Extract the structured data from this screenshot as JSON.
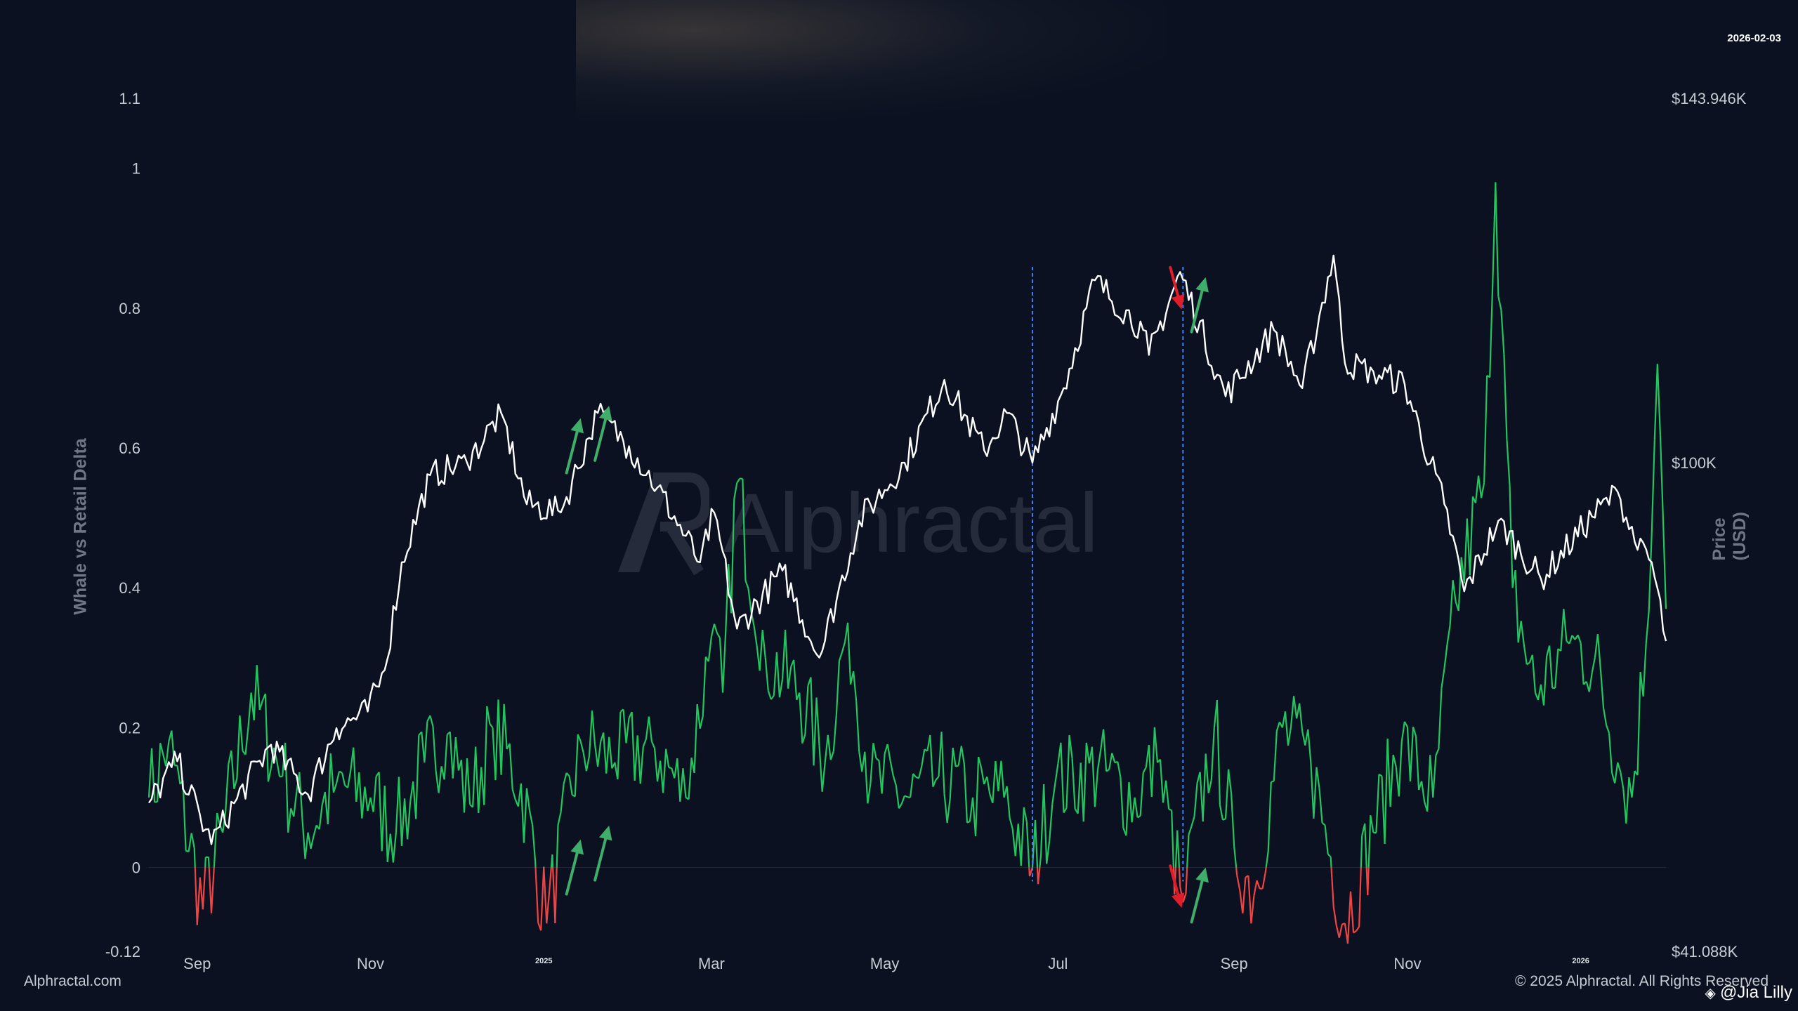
{
  "header": {
    "date": "2026-02-03"
  },
  "footer": {
    "source": "Alphractal.com",
    "copyright": "© 2025 Alphractal. All Rights Reserved",
    "handle": "@Jia Lilly"
  },
  "watermark": {
    "text": "Alphractal"
  },
  "colors": {
    "background": "#0b1120",
    "price_line": "#ffffff",
    "delta_positive": "#22c55e",
    "delta_negative": "#ef4444",
    "marker_line": "#3b82f6",
    "arrow_up": "#3fae6a",
    "arrow_down": "#e11d2a",
    "axis_text": "#c7cbd3",
    "axis_title": "#6e7688"
  },
  "chart_data": {
    "type": "line",
    "title": "",
    "ylabel_left": "Whale vs Retail Delta",
    "ylabel_right": "Price (USD)",
    "ylim_left": [
      -0.12,
      1.1
    ],
    "ylim_right": [
      41088,
      143946
    ],
    "y_ticks_left": [
      "1.1",
      "1",
      "0.8",
      "0.6",
      "0.4",
      "0.2",
      "0",
      "-0.12"
    ],
    "y_ticks_right": [
      "$143.946K",
      "$100K",
      "$41.088K"
    ],
    "x_range": [
      "2024-08-15",
      "2026-01-31"
    ],
    "x_ticks": [
      {
        "date": "2024-09-01",
        "label": "Sep",
        "small": false
      },
      {
        "date": "2024-11-01",
        "label": "Nov",
        "small": false
      },
      {
        "date": "2025-01-01",
        "label": "2025",
        "small": true
      },
      {
        "date": "2025-03-01",
        "label": "Mar",
        "small": false
      },
      {
        "date": "2025-05-01",
        "label": "May",
        "small": false
      },
      {
        "date": "2025-07-01",
        "label": "Jul",
        "small": false
      },
      {
        "date": "2025-09-01",
        "label": "Sep",
        "small": false
      },
      {
        "date": "2025-11-01",
        "label": "Nov",
        "small": false
      },
      {
        "date": "2026-01-01",
        "label": "2026",
        "small": true
      }
    ],
    "grid": false,
    "legend": "none",
    "series": [
      {
        "axis": "right",
        "points": [
          [
            "2024-08-15",
            59000
          ],
          [
            "2024-08-25",
            64000
          ],
          [
            "2024-09-06",
            54000
          ],
          [
            "2024-09-15",
            59500
          ],
          [
            "2024-09-27",
            66000
          ],
          [
            "2024-10-10",
            60000
          ],
          [
            "2024-10-20",
            68000
          ],
          [
            "2024-10-31",
            70000
          ],
          [
            "2024-11-06",
            75000
          ],
          [
            "2024-11-12",
            88000
          ],
          [
            "2024-11-22",
            98500
          ],
          [
            "2024-12-05",
            100000
          ],
          [
            "2024-12-17",
            106000
          ],
          [
            "2024-12-26",
            95000
          ],
          [
            "2025-01-07",
            94000
          ],
          [
            "2025-01-20",
            106000
          ],
          [
            "2025-01-31",
            102000
          ],
          [
            "2025-02-10",
            97000
          ],
          [
            "2025-02-25",
            88000
          ],
          [
            "2025-03-02",
            94000
          ],
          [
            "2025-03-10",
            80000
          ],
          [
            "2025-03-26",
            87000
          ],
          [
            "2025-04-08",
            76500
          ],
          [
            "2025-04-22",
            93000
          ],
          [
            "2025-05-08",
            100000
          ],
          [
            "2025-05-22",
            110000
          ],
          [
            "2025-06-05",
            101500
          ],
          [
            "2025-06-13",
            106000
          ],
          [
            "2025-06-22",
            100000
          ],
          [
            "2025-07-03",
            109000
          ],
          [
            "2025-07-14",
            122000
          ],
          [
            "2025-07-31",
            116000
          ],
          [
            "2025-08-02",
            113000
          ],
          [
            "2025-08-13",
            123000
          ],
          [
            "2025-08-29",
            108000
          ],
          [
            "2025-09-15",
            116000
          ],
          [
            "2025-09-25",
            109000
          ],
          [
            "2025-10-06",
            125000
          ],
          [
            "2025-10-10",
            112000
          ],
          [
            "2025-10-20",
            111000
          ],
          [
            "2025-10-31",
            109500
          ],
          [
            "2025-11-14",
            95000
          ],
          [
            "2025-11-21",
            84500
          ],
          [
            "2025-12-03",
            93000
          ],
          [
            "2025-12-18",
            86000
          ],
          [
            "2026-01-05",
            93500
          ],
          [
            "2026-01-14",
            96500
          ],
          [
            "2026-01-21",
            89500
          ],
          [
            "2026-01-26",
            88000
          ],
          [
            "2026-01-31",
            78500
          ]
        ]
      },
      {
        "axis": "left",
        "points": [
          [
            "2024-08-15",
            0.1
          ],
          [
            "2024-08-22",
            0.18
          ],
          [
            "2024-09-03",
            -0.06
          ],
          [
            "2024-09-10",
            0.05
          ],
          [
            "2024-09-20",
            0.25
          ],
          [
            "2024-10-01",
            0.13
          ],
          [
            "2024-10-10",
            0.05
          ],
          [
            "2024-10-20",
            0.12
          ],
          [
            "2024-11-01",
            0.1
          ],
          [
            "2024-11-10",
            0.05
          ],
          [
            "2024-11-20",
            0.15
          ],
          [
            "2024-11-28",
            0.19
          ],
          [
            "2024-12-06",
            0.09
          ],
          [
            "2024-12-14",
            0.2
          ],
          [
            "2024-12-24",
            0.12
          ],
          [
            "2025-01-02",
            -0.08
          ],
          [
            "2025-01-14",
            0.18
          ],
          [
            "2025-01-26",
            0.15
          ],
          [
            "2025-02-08",
            0.18
          ],
          [
            "2025-02-20",
            0.1
          ],
          [
            "2025-03-01",
            0.33
          ],
          [
            "2025-03-05",
            0.25
          ],
          [
            "2025-03-10",
            0.55
          ],
          [
            "2025-03-20",
            0.3
          ],
          [
            "2025-04-01",
            0.25
          ],
          [
            "2025-04-10",
            0.15
          ],
          [
            "2025-04-18",
            0.35
          ],
          [
            "2025-04-26",
            0.12
          ],
          [
            "2025-05-10",
            0.1
          ],
          [
            "2025-05-20",
            0.13
          ],
          [
            "2025-06-01",
            0.1
          ],
          [
            "2025-06-12",
            0.1
          ],
          [
            "2025-06-22",
            0.0
          ],
          [
            "2025-06-30",
            0.12
          ],
          [
            "2025-07-15",
            0.14
          ],
          [
            "2025-07-28",
            0.1
          ],
          [
            "2025-08-05",
            0.15
          ],
          [
            "2025-08-14",
            -0.05
          ],
          [
            "2025-08-25",
            0.2
          ],
          [
            "2025-09-01",
            0.03
          ],
          [
            "2025-09-08",
            -0.04
          ],
          [
            "2025-09-18",
            0.2
          ],
          [
            "2025-09-28",
            0.15
          ],
          [
            "2025-10-10",
            -0.08
          ],
          [
            "2025-10-20",
            0.05
          ],
          [
            "2025-10-30",
            0.18
          ],
          [
            "2025-11-10",
            0.1
          ],
          [
            "2025-11-18",
            0.38
          ],
          [
            "2025-11-28",
            0.55
          ],
          [
            "2025-12-02",
            0.98
          ],
          [
            "2025-12-08",
            0.4
          ],
          [
            "2025-12-16",
            0.25
          ],
          [
            "2025-12-28",
            0.32
          ],
          [
            "2026-01-06",
            0.3
          ],
          [
            "2026-01-14",
            0.15
          ],
          [
            "2026-01-19",
            0.1
          ],
          [
            "2026-01-24",
            0.32
          ],
          [
            "2026-01-28",
            0.72
          ],
          [
            "2026-01-31",
            0.37
          ]
        ]
      }
    ],
    "marker_dates": [
      "2025-06-22",
      "2025-08-14"
    ],
    "annotations": [
      {
        "type": "arrow-up",
        "date": "2025-01-11",
        "axis": "right",
        "value": 102000
      },
      {
        "type": "arrow-up",
        "date": "2025-01-21",
        "axis": "right",
        "value": 103500
      },
      {
        "type": "arrow-down",
        "date": "2025-08-12",
        "axis": "right",
        "value": 120000
      },
      {
        "type": "arrow-up",
        "date": "2025-08-19",
        "axis": "right",
        "value": 119000
      },
      {
        "type": "arrow-up",
        "date": "2025-01-11",
        "axis": "left",
        "value": 0.0
      },
      {
        "type": "arrow-up",
        "date": "2025-01-21",
        "axis": "left",
        "value": 0.02
      },
      {
        "type": "arrow-down",
        "date": "2025-08-12",
        "axis": "left",
        "value": -0.04
      },
      {
        "type": "arrow-up",
        "date": "2025-08-19",
        "axis": "left",
        "value": -0.04
      }
    ]
  }
}
